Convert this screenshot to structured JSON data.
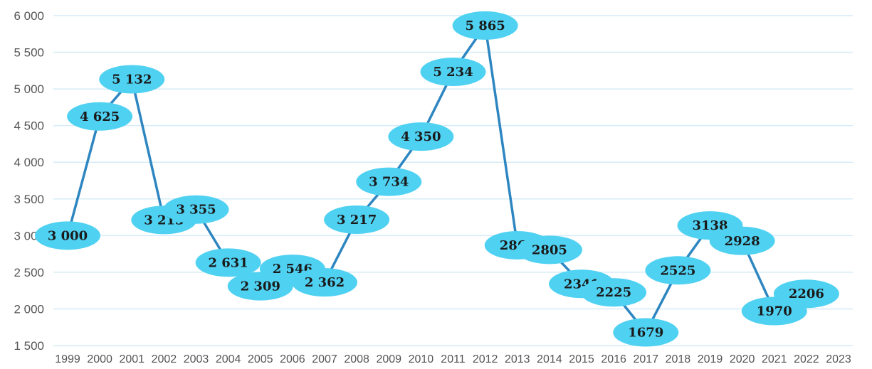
{
  "chart_data": {
    "type": "line",
    "title": "",
    "xlabel": "",
    "ylabel": "",
    "ylim": [
      1500,
      6000
    ],
    "yticks": [
      "6 000",
      "5 500",
      "5 000",
      "4 500",
      "4 000",
      "3 500",
      "3 000",
      "2 500",
      "2 000",
      "1 500"
    ],
    "ytick_values": [
      6000,
      5500,
      5000,
      4500,
      4000,
      3500,
      3000,
      2500,
      2000,
      1500
    ],
    "grid": true,
    "line_color": "#2e86c1",
    "label_color": "#4fd1f2",
    "grid_color": "#d6ecf6",
    "x": [
      "1999",
      "2000",
      "2001",
      "2002",
      "2003",
      "2004",
      "2005",
      "2006",
      "2007",
      "2008",
      "2009",
      "2010",
      "2011",
      "2012",
      "2013",
      "2014",
      "2015",
      "2016",
      "2017",
      "2018",
      "2019",
      "2020",
      "2021",
      "2022",
      "2023"
    ],
    "points": [
      {
        "x": "1999",
        "y": 3000,
        "label": "3 000"
      },
      {
        "x": "2000",
        "y": 4625,
        "label": "4 625"
      },
      {
        "x": "2001",
        "y": 5132,
        "label": "5 132"
      },
      {
        "x": "2002",
        "y": 3213,
        "label": "3 213"
      },
      {
        "x": "2003",
        "y": 3355,
        "label": "3 355"
      },
      {
        "x": "2004",
        "y": 2631,
        "label": "2 631"
      },
      {
        "x": "2005",
        "y": 2309,
        "label": "2 309"
      },
      {
        "x": "2006",
        "y": 2546,
        "label": "2 546"
      },
      {
        "x": "2007",
        "y": 2362,
        "label": "2 362"
      },
      {
        "x": "2008",
        "y": 3217,
        "label": "3 217"
      },
      {
        "x": "2009",
        "y": 3734,
        "label": "3 734"
      },
      {
        "x": "2010",
        "y": 4350,
        "label": "4 350"
      },
      {
        "x": "2011",
        "y": 5234,
        "label": "5 234"
      },
      {
        "x": "2012",
        "y": 5865,
        "label": "5 865"
      },
      {
        "x": "2013",
        "y": 2868,
        "label": "2868"
      },
      {
        "x": "2014",
        "y": 2805,
        "label": "2805"
      },
      {
        "x": "2015",
        "y": 2341,
        "label": "2341"
      },
      {
        "x": "2016",
        "y": 2225,
        "label": "2225"
      },
      {
        "x": "2017",
        "y": 1679,
        "label": "1679"
      },
      {
        "x": "2018",
        "y": 2525,
        "label": "2525"
      },
      {
        "x": "2019",
        "y": 3138,
        "label": "3138"
      },
      {
        "x": "2020",
        "y": 2928,
        "label": "2928"
      },
      {
        "x": "2021",
        "y": 1970,
        "label": "1970"
      },
      {
        "x": "2022",
        "y": 2206,
        "label": "2206"
      }
    ]
  }
}
